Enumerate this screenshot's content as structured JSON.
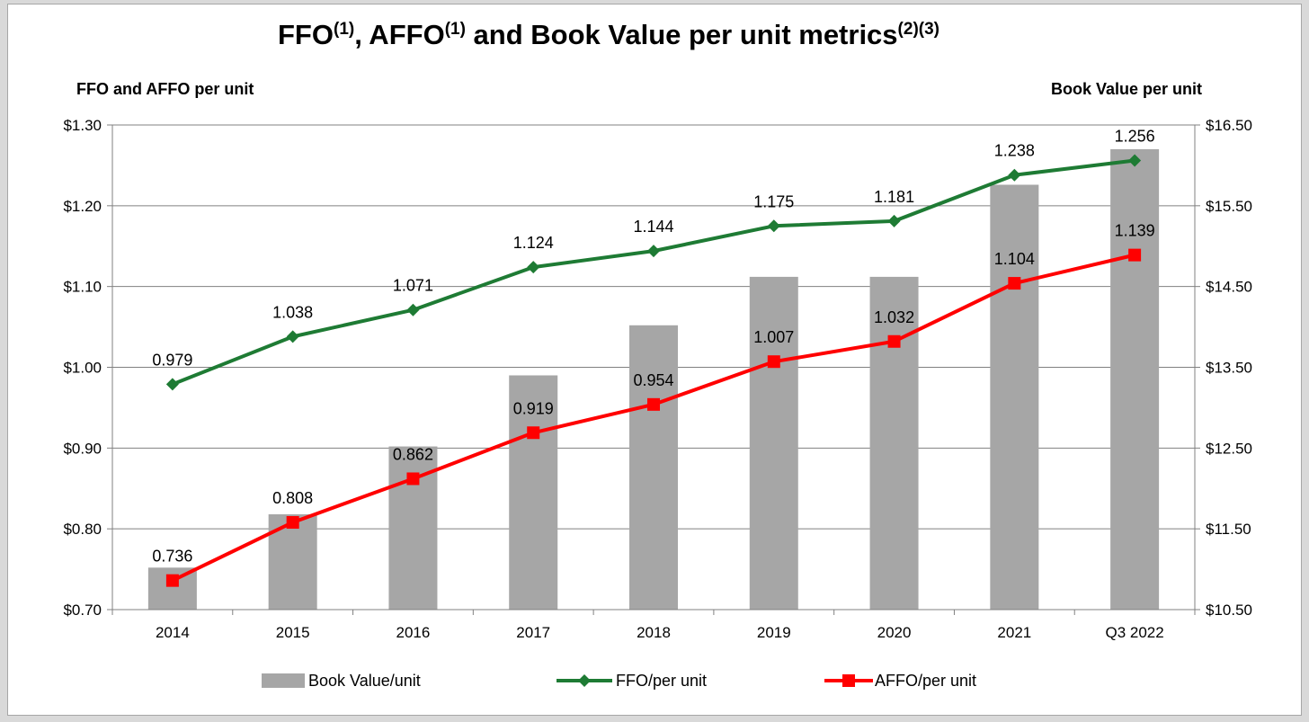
{
  "chart_data": {
    "type": "bar",
    "title": {
      "parts": [
        {
          "text": "FFO",
          "sup": false
        },
        {
          "text": "(1)",
          "sup": true
        },
        {
          "text": ", AFFO",
          "sup": false
        },
        {
          "text": "(1)",
          "sup": true
        },
        {
          "text": " and Book Value per unit metrics",
          "sup": false
        },
        {
          "text": "(2)(3)",
          "sup": true
        }
      ]
    },
    "ylabel_left": "FFO and AFFO per unit",
    "ylabel_right": "Book Value per unit",
    "categories": [
      "2014",
      "2015",
      "2016",
      "2017",
      "2018",
      "2019",
      "2020",
      "2021",
      "Q3 2022"
    ],
    "y_left": {
      "lim": [
        0.7,
        1.3
      ],
      "ticks": [
        "$1.30",
        "$1.20",
        "$1.10",
        "$1.00",
        "$0.90",
        "$0.80",
        "$0.70"
      ],
      "tick_values": [
        1.3,
        1.2,
        1.1,
        1.0,
        0.9,
        0.8,
        0.7
      ]
    },
    "y_right": {
      "lim": [
        10.5,
        16.5
      ],
      "ticks": [
        "$16.50",
        "$15.50",
        "$14.50",
        "$13.50",
        "$12.50",
        "$11.50",
        "$10.50"
      ],
      "tick_values": [
        16.5,
        15.5,
        14.5,
        13.5,
        12.5,
        11.5,
        10.5
      ]
    },
    "grid": true,
    "legend_position": "bottom",
    "series": [
      {
        "name": "Book Value/unit",
        "kind": "bar",
        "axis": "right",
        "color": "#a6a6a6",
        "values": [
          11.02,
          11.68,
          12.52,
          13.4,
          14.02,
          14.62,
          14.62,
          15.76,
          16.2
        ]
      },
      {
        "name": "FFO/per unit",
        "kind": "line",
        "axis": "left",
        "marker": "diamond",
        "color": "#1e7b34",
        "values": [
          0.979,
          1.038,
          1.071,
          1.124,
          1.144,
          1.175,
          1.181,
          1.238,
          1.256
        ],
        "labels": [
          "0.979",
          "1.038",
          "1.071",
          "1.124",
          "1.144",
          "1.175",
          "1.181",
          "1.238",
          "1.256"
        ]
      },
      {
        "name": "AFFO/per unit",
        "kind": "line",
        "axis": "left",
        "marker": "square",
        "color": "#ff0000",
        "values": [
          0.736,
          0.808,
          0.862,
          0.919,
          0.954,
          1.007,
          1.032,
          1.104,
          1.139
        ],
        "labels": [
          "0.736",
          "0.808",
          "0.862",
          "0.919",
          "0.954",
          "1.007",
          "1.032",
          "1.104",
          "1.139"
        ]
      }
    ]
  }
}
